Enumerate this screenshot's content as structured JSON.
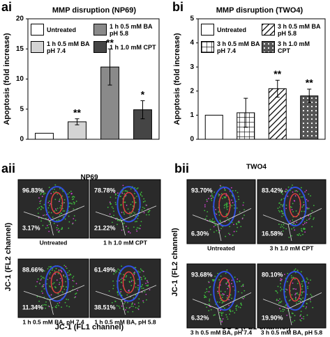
{
  "chart_data": [
    {
      "type": "bar",
      "panel": "ai",
      "title": "MMP disruption (NP69)",
      "y_label": "Apoptosis (fold increase)",
      "categories": [
        "Untreated",
        "1 h 0.5 mM BA pH 7.4",
        "1 h 0.5 mM BA pH 5.8",
        "1 h 1.0 mM CPT"
      ],
      "values": [
        1,
        2.9,
        12,
        4.9
      ],
      "errors": [
        0,
        0.5,
        3,
        1.5
      ],
      "significance": [
        null,
        "**",
        "**",
        "*"
      ],
      "colors": [
        "#ffffff",
        "#d4d4d4",
        "#8a8a8a",
        "#454545"
      ],
      "patterns": [
        "none",
        "none",
        "none",
        "none"
      ],
      "ylim": [
        0,
        20
      ],
      "yticks": [
        0,
        5,
        10,
        15,
        20
      ]
    },
    {
      "type": "bar",
      "panel": "bi",
      "title": "MMP disruption (TWO4)",
      "y_label": "Apoptosis (fold increase)",
      "categories": [
        "Untreated",
        "3 h 0.5 mM BA pH 7.4",
        "3 h 0.5 mM BA pH 5.8",
        "3 h 1.0 mM CPT"
      ],
      "values": [
        1,
        1.1,
        2.1,
        1.8
      ],
      "errors": [
        0,
        0.6,
        0.35,
        0.28
      ],
      "significance": [
        null,
        null,
        "**",
        "**"
      ],
      "colors": [
        "#ffffff",
        "#ffffff",
        "#ffffff",
        "#555555"
      ],
      "patterns": [
        "none",
        "grid",
        "stripes",
        "dots"
      ],
      "ylim": [
        0,
        5
      ],
      "yticks": [
        0,
        1,
        2,
        3,
        4,
        5
      ]
    }
  ],
  "flow_panels": [
    {
      "panel": "aii",
      "title": "NP69",
      "x_label": "JC-1 (FL1 channel)",
      "y_label": "JC-1 (FL2 channel)",
      "plots": [
        {
          "upper": "96.83%",
          "lower": "3.17%",
          "caption": "Untreated"
        },
        {
          "upper": "78.78%",
          "lower": "21.22%",
          "caption": "1 h 1.0 mM CPT"
        },
        {
          "upper": "88.66%",
          "lower": "11.34%",
          "caption": "1 h 0.5 mM BA, pH 7.4"
        },
        {
          "upper": "61.49%",
          "lower": "38.51%",
          "caption": "1 h 0.5 mM BA, pH 5.8"
        }
      ]
    },
    {
      "panel": "bii",
      "title": "TWO4",
      "x_label": "JC-1 (FL1 channel)",
      "y_label": "JC-1 (FL2 channel)",
      "plots": [
        {
          "upper": "93.70%",
          "lower": "6.30%",
          "caption": "Untreated"
        },
        {
          "upper": "83.42%",
          "lower": "16.58%",
          "caption": "3 h 1.0 mM CPT"
        },
        {
          "upper": "93.68%",
          "lower": "6.32%",
          "caption": "3 h 0.5 mM BA, pH 7.4"
        },
        {
          "upper": "80.10%",
          "lower": "19.90%",
          "caption": "3 h 0.5 mM BA, pH 5.8"
        }
      ]
    }
  ]
}
